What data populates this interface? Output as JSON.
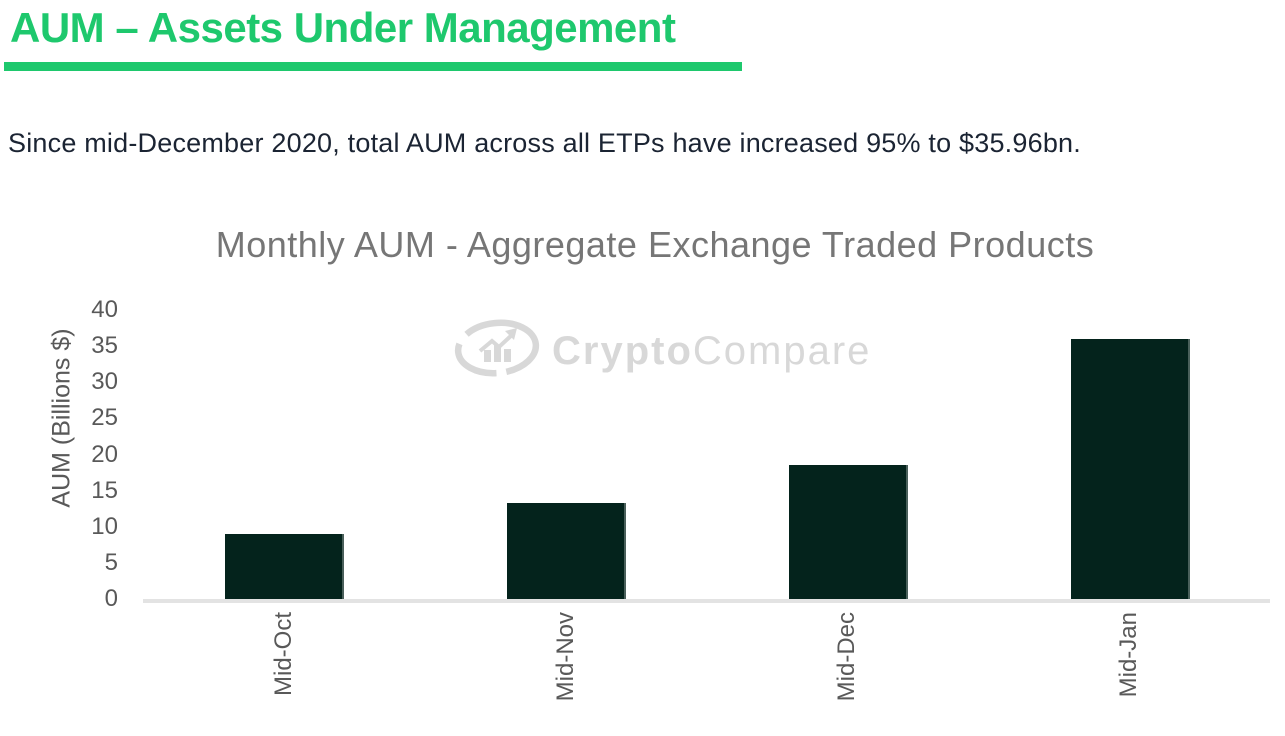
{
  "header": {
    "title": "AUM – Assets Under Management",
    "subtitle": "Since mid-December 2020, total AUM across all ETPs have increased 95% to $35.96bn."
  },
  "watermark": {
    "icon": "cryptocompare-logo-icon",
    "brand_bold": "Crypto",
    "brand_light": "Compare"
  },
  "colors": {
    "accent_green": "#1ec86d",
    "bar_fill": "#04231c",
    "axis_line": "#e3e3e3",
    "axis_text": "#595959",
    "chart_title_text": "#767676",
    "body_text": "#1b2433",
    "watermark_gray": "#d8d8d8"
  },
  "chart_data": {
    "type": "bar",
    "title": "Monthly AUM - Aggregate Exchange Traded Products",
    "categories": [
      "Mid-Oct",
      "Mid-Nov",
      "Mid-Dec",
      "Mid-Jan"
    ],
    "values": [
      9.0,
      13.3,
      18.5,
      35.96
    ],
    "xlabel": "",
    "ylabel": "AUM (Billions $)",
    "ylim": [
      0,
      40
    ],
    "yticks": [
      0,
      5,
      10,
      15,
      20,
      25,
      30,
      35,
      40
    ],
    "grid": false,
    "legend": false,
    "bar_color": "#04231c"
  }
}
